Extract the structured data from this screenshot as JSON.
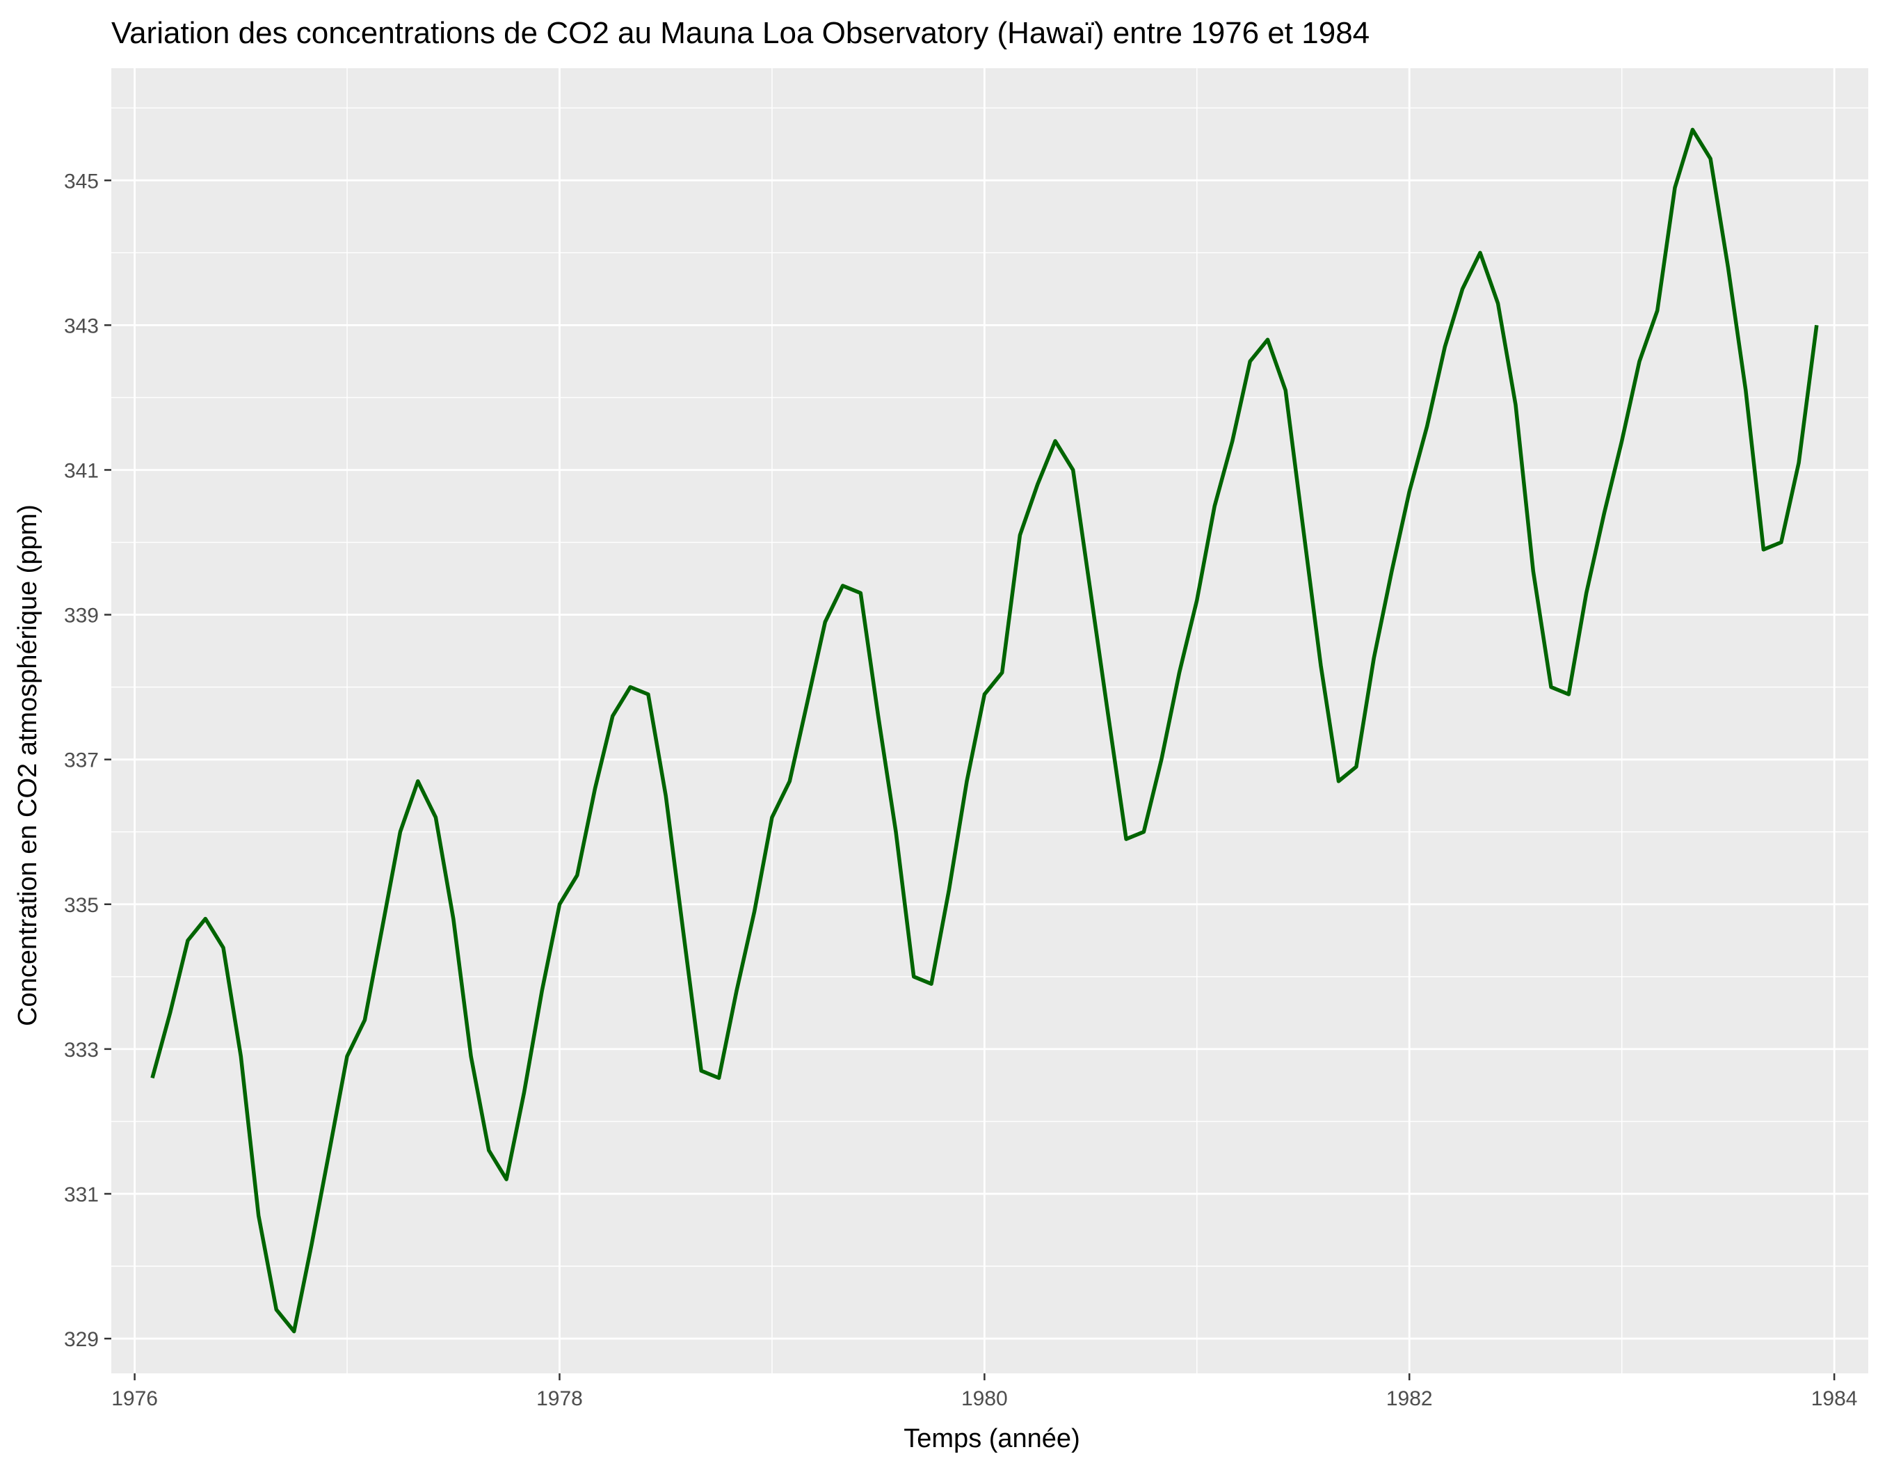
{
  "chart_data": {
    "type": "line",
    "title": "Variation des concentrations de CO2 au Mauna Loa Observatory (Hawaï) entre 1976 et 1984",
    "xlabel": "Temps (année)",
    "ylabel": "Concentration en CO2 atmosphérique (ppm)",
    "xlim": [
      1975.89,
      1984.16
    ],
    "ylim": [
      328.52,
      346.55
    ],
    "x_ticks": [
      1976,
      1978,
      1980,
      1982,
      1984
    ],
    "y_ticks": [
      329,
      331,
      333,
      335,
      337,
      339,
      341,
      343,
      345
    ],
    "grid": true,
    "legend": "none",
    "colors": {
      "line": "#006400",
      "panel": "#EBEBEB",
      "grid": "#FFFFFF",
      "background": "#FFFFFF"
    },
    "series": [
      {
        "x": [
          1976.083,
          1976.167,
          1976.25,
          1976.333,
          1976.417,
          1976.5,
          1976.583,
          1976.667,
          1976.75,
          1976.833,
          1976.917,
          1977.0,
          1977.083,
          1977.167,
          1977.25,
          1977.333,
          1977.417,
          1977.5,
          1977.583,
          1977.667,
          1977.75,
          1977.833,
          1977.917,
          1978.0,
          1978.083,
          1978.167,
          1978.25,
          1978.333,
          1978.417,
          1978.5,
          1978.583,
          1978.667,
          1978.75,
          1978.833,
          1978.917,
          1979.0,
          1979.083,
          1979.167,
          1979.25,
          1979.333,
          1979.417,
          1979.5,
          1979.583,
          1979.667,
          1979.75,
          1979.833,
          1979.917,
          1980.0,
          1980.083,
          1980.167,
          1980.25,
          1980.333,
          1980.417,
          1980.5,
          1980.583,
          1980.667,
          1980.75,
          1980.833,
          1980.917,
          1981.0,
          1981.083,
          1981.167,
          1981.25,
          1981.333,
          1981.417,
          1981.5,
          1981.583,
          1981.667,
          1981.75,
          1981.833,
          1981.917,
          1982.0,
          1982.083,
          1982.167,
          1982.25,
          1982.333,
          1982.417,
          1982.5,
          1982.583,
          1982.667,
          1982.75,
          1982.833,
          1982.917,
          1983.0,
          1983.083,
          1983.167,
          1983.25,
          1983.333,
          1983.417,
          1983.5,
          1983.583,
          1983.667,
          1983.75,
          1983.833,
          1983.917
        ],
        "values": [
          332.6,
          333.5,
          334.5,
          334.8,
          334.4,
          332.9,
          330.7,
          329.4,
          329.1,
          330.3,
          331.6,
          332.9,
          333.4,
          334.7,
          336.0,
          336.7,
          336.2,
          334.8,
          332.9,
          331.6,
          331.2,
          332.4,
          333.8,
          335.0,
          335.4,
          336.6,
          337.6,
          338.0,
          337.9,
          336.5,
          334.6,
          332.7,
          332.6,
          333.8,
          334.9,
          336.2,
          336.7,
          337.8,
          338.9,
          339.4,
          339.3,
          337.6,
          336.0,
          334.0,
          333.9,
          335.2,
          336.7,
          337.9,
          338.2,
          340.1,
          340.8,
          341.4,
          341.0,
          339.3,
          337.6,
          335.9,
          336.0,
          337.0,
          338.2,
          339.2,
          340.5,
          341.4,
          342.5,
          342.8,
          342.1,
          340.2,
          338.3,
          336.7,
          336.9,
          338.4,
          339.6,
          340.7,
          341.6,
          342.7,
          343.5,
          344.0,
          343.3,
          341.9,
          339.6,
          338.0,
          337.9,
          339.3,
          340.4,
          341.4,
          342.5,
          343.2,
          344.9,
          345.7,
          345.3,
          343.8,
          342.1,
          339.9,
          340.0,
          341.1,
          343.0
        ]
      }
    ]
  }
}
